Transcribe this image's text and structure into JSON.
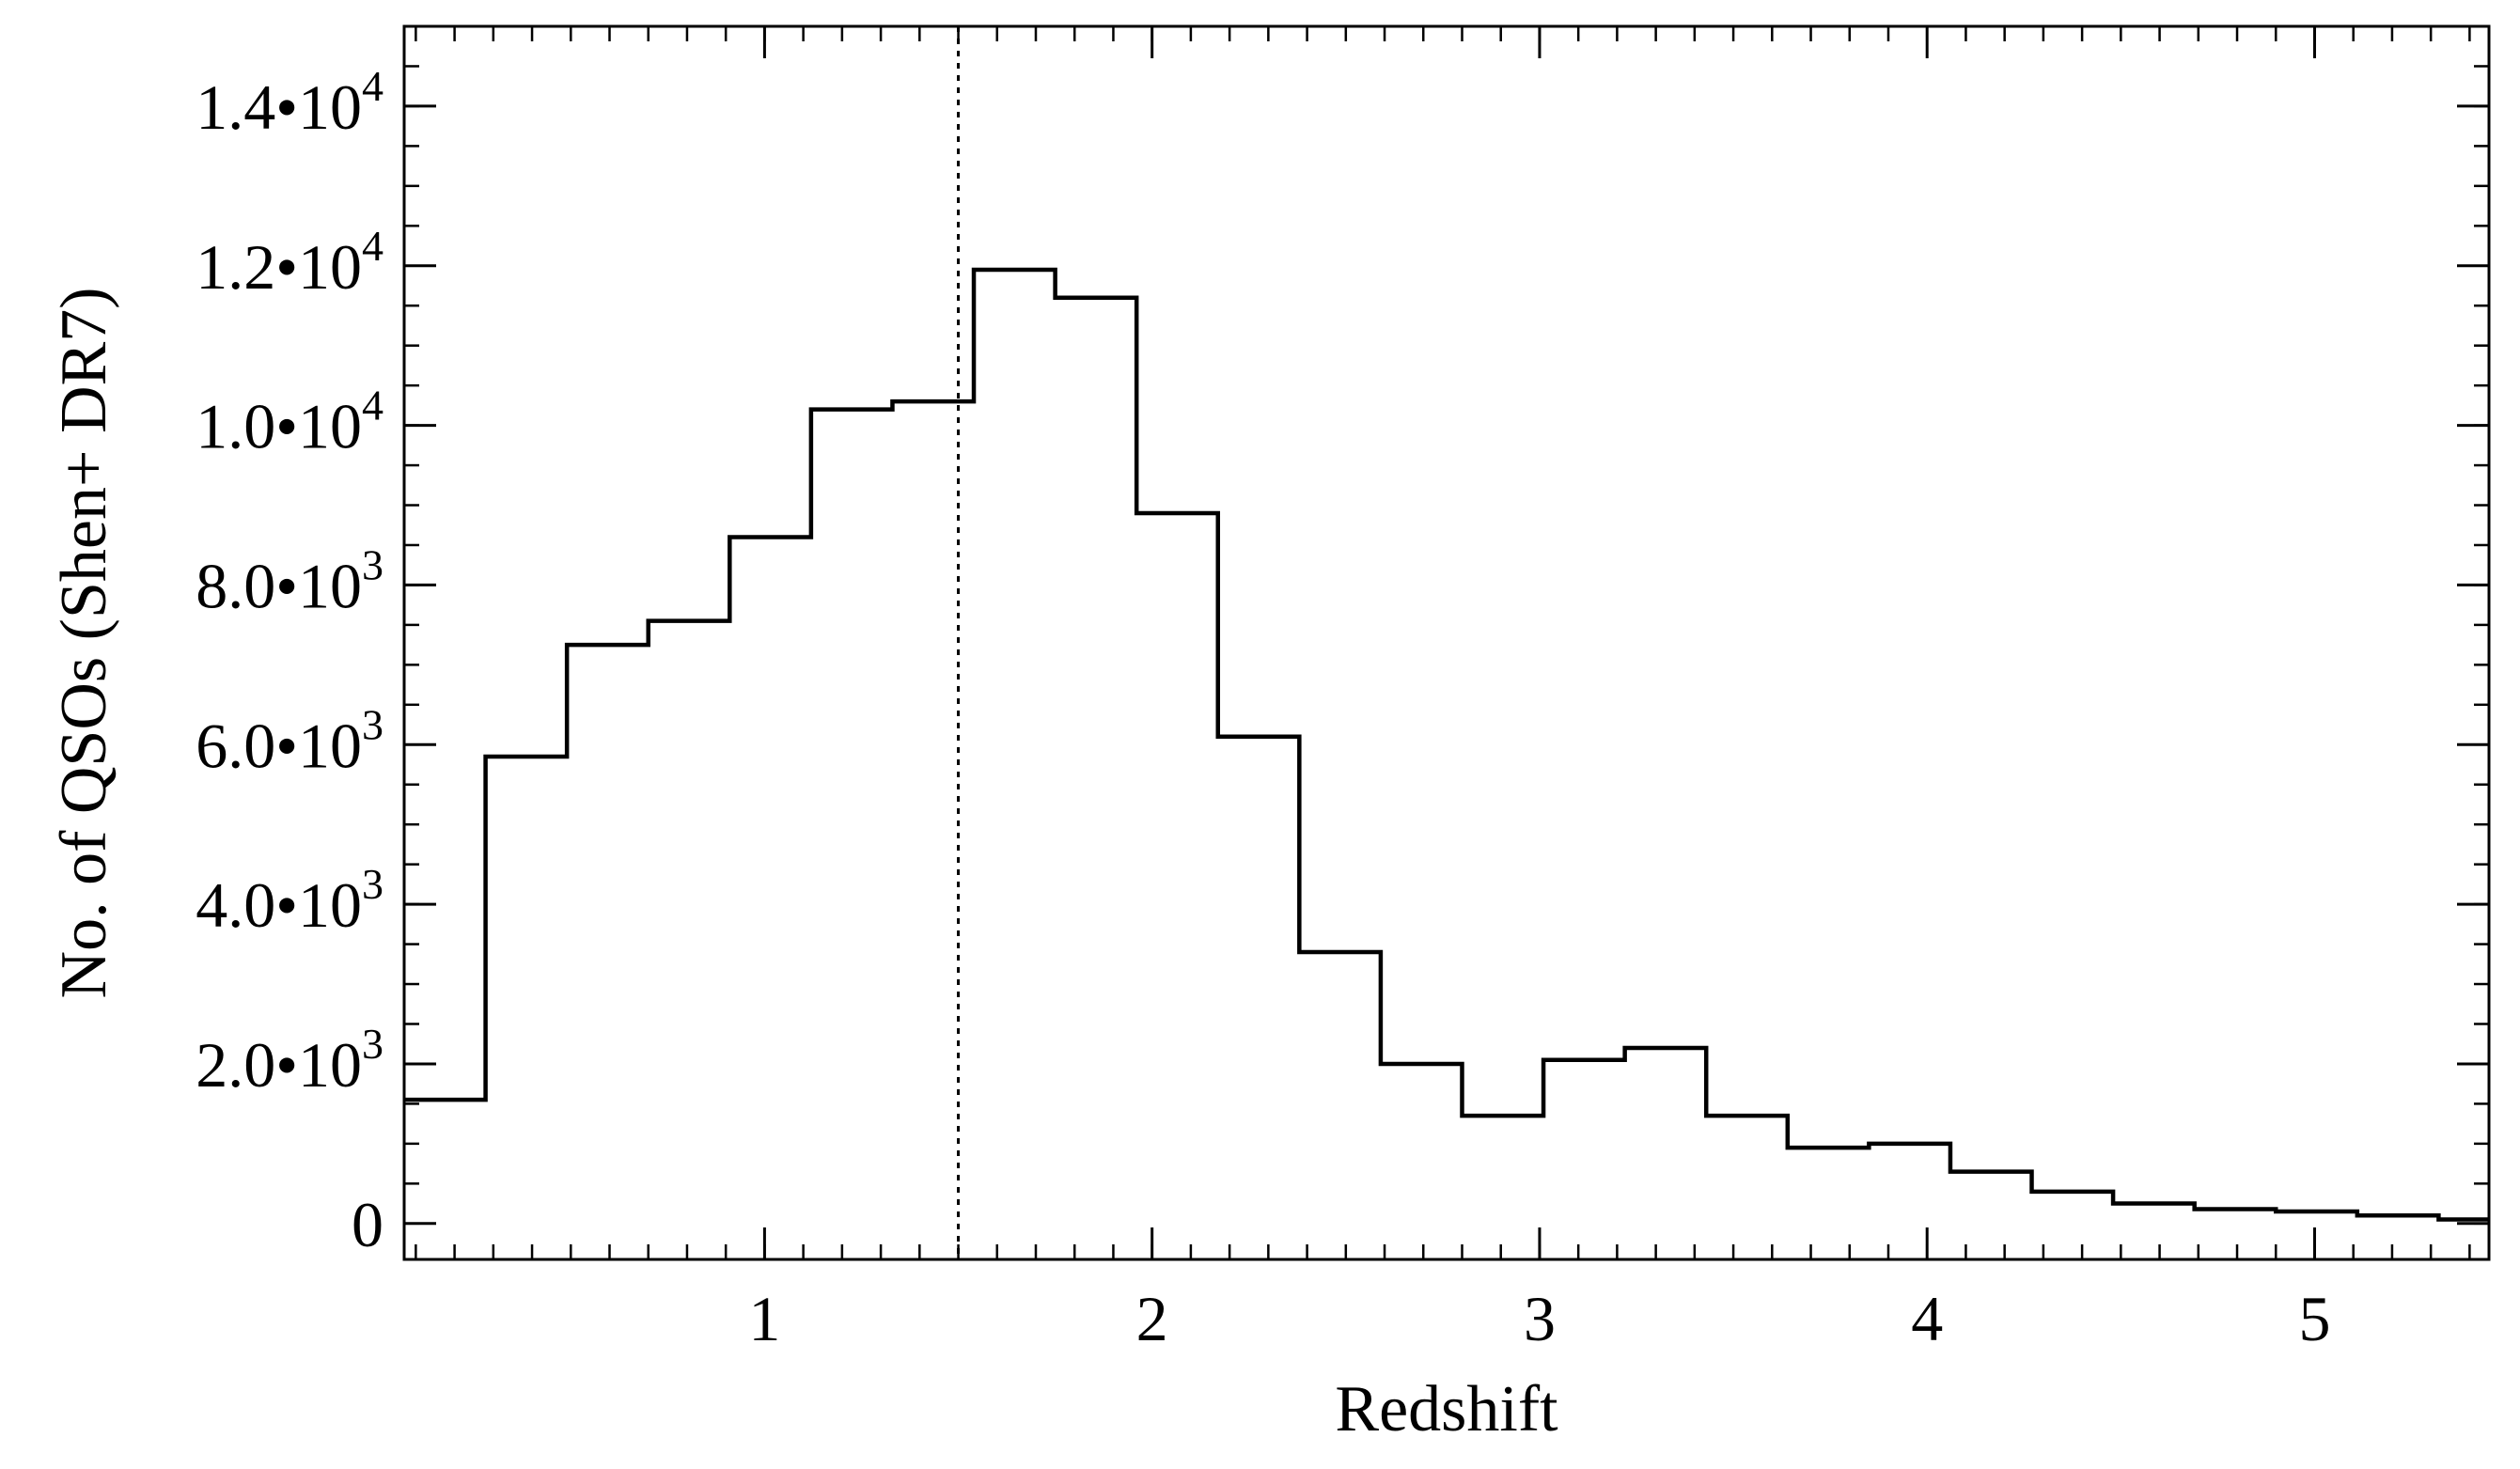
{
  "chart_data": {
    "type": "histogram",
    "xlabel": "Redshift",
    "ylabel": "No. of QSOs (Shen+ DR7)",
    "xlim": [
      0.07,
      5.45
    ],
    "ylim": [
      -450,
      15000
    ],
    "grid": false,
    "bin_edges": [
      0.07,
      0.28,
      0.49,
      0.7,
      0.91,
      1.12,
      1.33,
      1.54,
      1.75,
      1.96,
      2.17,
      2.38,
      2.59,
      2.8,
      3.01,
      3.22,
      3.43,
      3.64,
      3.85,
      4.06,
      4.27,
      4.48,
      4.69,
      4.9,
      5.11,
      5.32,
      5.45
    ],
    "counts": [
      1550,
      5850,
      7250,
      7550,
      8600,
      10200,
      10300,
      11950,
      11600,
      8900,
      6100,
      3400,
      2000,
      1350,
      2050,
      2200,
      1350,
      950,
      1000,
      650,
      400,
      250,
      180,
      150,
      100,
      50
    ],
    "x_ticks": [
      {
        "value": 1,
        "label": "1"
      },
      {
        "value": 2,
        "label": "2"
      },
      {
        "value": 3,
        "label": "3"
      },
      {
        "value": 4,
        "label": "4"
      },
      {
        "value": 5,
        "label": "5"
      }
    ],
    "y_ticks": [
      {
        "value": 0,
        "label": "0"
      },
      {
        "value": 2000,
        "mant": "2.0•10",
        "exp": "3"
      },
      {
        "value": 4000,
        "mant": "4.0•10",
        "exp": "3"
      },
      {
        "value": 6000,
        "mant": "6.0•10",
        "exp": "3"
      },
      {
        "value": 8000,
        "mant": "8.0•10",
        "exp": "3"
      },
      {
        "value": 10000,
        "mant": "1.0•10",
        "exp": "4"
      },
      {
        "value": 12000,
        "mant": "1.2•10",
        "exp": "4"
      },
      {
        "value": 14000,
        "mant": "1.4•10",
        "exp": "4"
      }
    ],
    "x_minor_step": 0.1,
    "y_minor_step": 500,
    "reference_line": {
      "x": 1.5,
      "style": "dotted"
    },
    "line_color": "#000000"
  }
}
